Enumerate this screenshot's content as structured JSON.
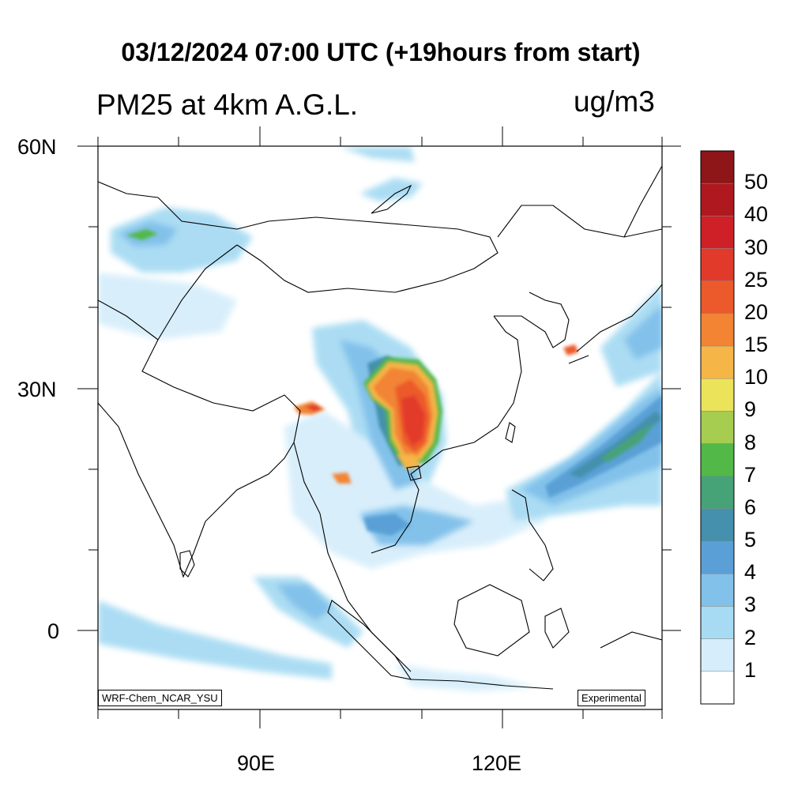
{
  "title": "03/12/2024 07:00 UTC (+19hours from start)",
  "subtitle": "PM25 at 4km A.G.L.",
  "units": "ug/m3",
  "credits": {
    "left": "WRF-Chem_NCAR_YSU",
    "right": "Experimental"
  },
  "axes": {
    "lat_labels": [
      "60N",
      "30N",
      "0"
    ],
    "lon_labels": [
      "90E",
      "120E"
    ]
  },
  "colorbar": {
    "labels": [
      "50",
      "40",
      "30",
      "25",
      "20",
      "15",
      "10",
      "9",
      "8",
      "7",
      "6",
      "5",
      "4",
      "3",
      "2",
      "1"
    ],
    "colors": [
      "#8e1518",
      "#b0181f",
      "#cf1f27",
      "#e23a2a",
      "#ec5a2b",
      "#f28434",
      "#f5b547",
      "#ebe35a",
      "#a6cd50",
      "#52b848",
      "#46a277",
      "#4490ad",
      "#5aa0d6",
      "#82c1ea",
      "#a7dbf3",
      "#d6eefb",
      "#ffffff"
    ]
  },
  "map_style": {
    "land_outline": "#000000",
    "background": "#ffffff"
  }
}
